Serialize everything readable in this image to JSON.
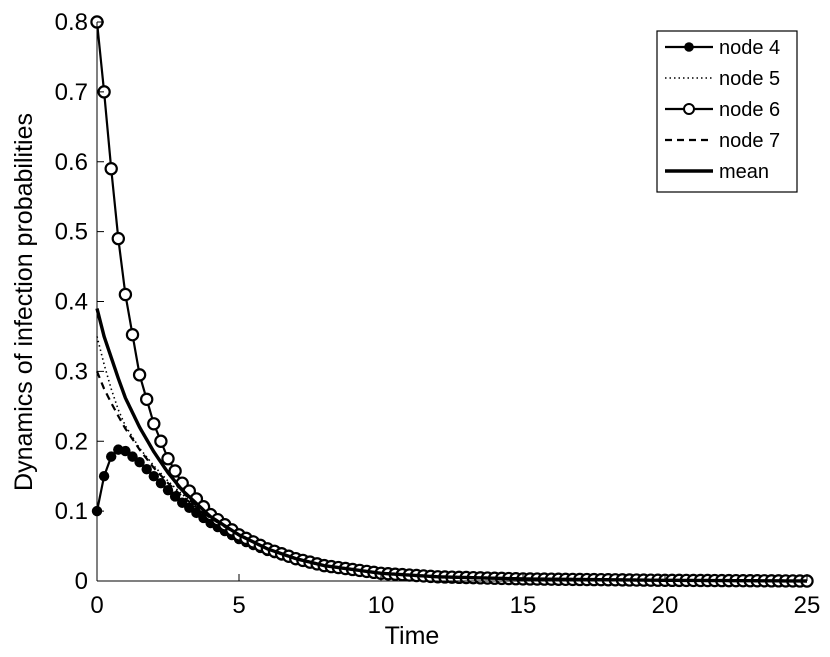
{
  "chart_data": {
    "type": "line",
    "title": "",
    "xlabel": "Time",
    "ylabel": "Dynamics of infection probabilities",
    "xlim": [
      0,
      25
    ],
    "ylim": [
      0,
      0.8
    ],
    "xticks": [
      0,
      5,
      10,
      15,
      20,
      25
    ],
    "xtick_labels": [
      "0",
      "5",
      "10",
      "15",
      "20",
      "25"
    ],
    "yticks": [
      0,
      0.1,
      0.2,
      0.3,
      0.4,
      0.5,
      0.6,
      0.7,
      0.8
    ],
    "ytick_labels": [
      "0",
      "0.1",
      "0.2",
      "0.3",
      "0.4",
      "0.5",
      "0.6",
      "0.7",
      "0.8"
    ],
    "grid": false,
    "legend_position": "top-right",
    "marker_spacing": 0.25,
    "x": [
      0,
      0.25,
      0.5,
      0.75,
      1,
      1.5,
      2,
      2.5,
      3,
      4,
      5,
      6,
      7,
      8,
      10,
      12,
      15,
      20,
      25
    ],
    "series": [
      {
        "name": "node 4",
        "style": "solid-dot",
        "values": [
          0.1,
          0.15,
          0.178,
          0.188,
          0.186,
          0.17,
          0.15,
          0.13,
          0.112,
          0.083,
          0.06,
          0.043,
          0.03,
          0.021,
          0.011,
          0.006,
          0.003,
          0.001,
          0.0
        ]
      },
      {
        "name": "node 5",
        "style": "dotted",
        "values": [
          0.35,
          0.31,
          0.275,
          0.245,
          0.222,
          0.19,
          0.165,
          0.143,
          0.124,
          0.092,
          0.066,
          0.047,
          0.033,
          0.023,
          0.012,
          0.006,
          0.003,
          0.001,
          0.0
        ]
      },
      {
        "name": "node 6",
        "style": "solid-circle",
        "values": [
          0.8,
          0.7,
          0.59,
          0.49,
          0.41,
          0.295,
          0.225,
          0.175,
          0.14,
          0.095,
          0.066,
          0.046,
          0.032,
          0.022,
          0.011,
          0.006,
          0.003,
          0.001,
          0.0
        ]
      },
      {
        "name": "node 7",
        "style": "dashed",
        "values": [
          0.3,
          0.275,
          0.255,
          0.236,
          0.218,
          0.188,
          0.162,
          0.14,
          0.121,
          0.09,
          0.065,
          0.046,
          0.032,
          0.022,
          0.011,
          0.006,
          0.003,
          0.001,
          0.0
        ]
      },
      {
        "name": "mean",
        "style": "thick",
        "values": [
          0.39,
          0.35,
          0.32,
          0.29,
          0.262,
          0.22,
          0.185,
          0.155,
          0.13,
          0.092,
          0.066,
          0.046,
          0.032,
          0.022,
          0.011,
          0.006,
          0.003,
          0.001,
          0.0
        ]
      }
    ]
  }
}
